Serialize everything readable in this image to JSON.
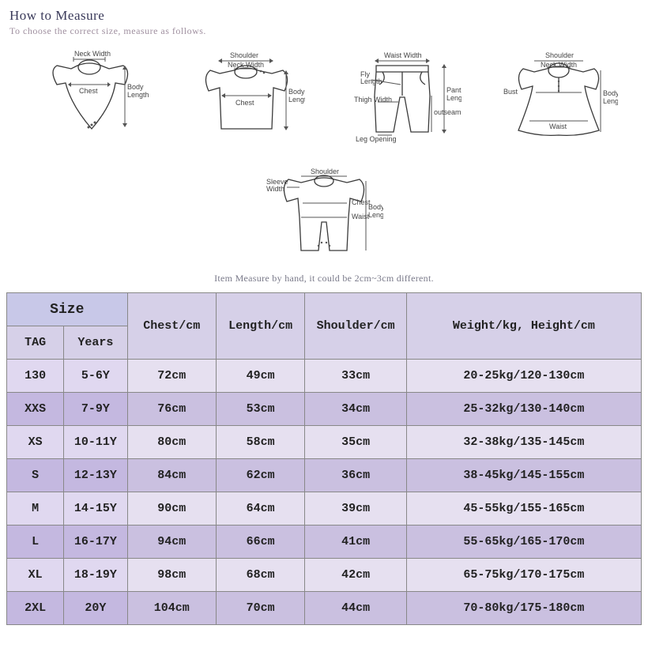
{
  "header": {
    "title": "How to Measure",
    "subtitle": "To choose the correct size, measure as follows."
  },
  "diagrams": {
    "labels": {
      "neck_width": "Neck Width",
      "chest": "Chest",
      "body_length": "Body\nLength",
      "shoulder": "Shoulder",
      "bust": "Bust",
      "waist": "Waist",
      "waist_width": "Waist Width",
      "fly_length": "Fly\nLength",
      "thigh_width": "Thigh Width",
      "leg_opening": "Leg Opening",
      "pant_length": "Pant\nLength",
      "outseam": "outseam",
      "sleeve_width": "Sleeve\nWidth"
    },
    "stroke_color": "#3a3a3a",
    "label_color": "#444444"
  },
  "note": "Item Measure by hand, it could be 2cm~3cm different.",
  "table": {
    "header_bg_size": "#c8c8e8",
    "header_bg_col": "#d6d0e8",
    "row_odd_bg": "#e6e0f0",
    "row_even_bg": "#cac0e0",
    "border_color": "#888888",
    "font_family": "Courier New",
    "size_header": "Size",
    "sub_headers": [
      "TAG",
      "Years"
    ],
    "columns": [
      "Chest/cm",
      "Length/cm",
      "Shoulder/cm",
      "Weight/kg, Height/cm"
    ],
    "rows": [
      {
        "tag": "130",
        "years": "5-6Y",
        "chest": "72cm",
        "length": "49cm",
        "shoulder": "33cm",
        "weight": "20-25kg/120-130cm"
      },
      {
        "tag": "XXS",
        "years": "7-9Y",
        "chest": "76cm",
        "length": "53cm",
        "shoulder": "34cm",
        "weight": "25-32kg/130-140cm"
      },
      {
        "tag": "XS",
        "years": "10-11Y",
        "chest": "80cm",
        "length": "58cm",
        "shoulder": "35cm",
        "weight": "32-38kg/135-145cm"
      },
      {
        "tag": "S",
        "years": "12-13Y",
        "chest": "84cm",
        "length": "62cm",
        "shoulder": "36cm",
        "weight": "38-45kg/145-155cm"
      },
      {
        "tag": "M",
        "years": "14-15Y",
        "chest": "90cm",
        "length": "64cm",
        "shoulder": "39cm",
        "weight": "45-55kg/155-165cm"
      },
      {
        "tag": "L",
        "years": "16-17Y",
        "chest": "94cm",
        "length": "66cm",
        "shoulder": "41cm",
        "weight": "55-65kg/165-170cm"
      },
      {
        "tag": "XL",
        "years": "18-19Y",
        "chest": "98cm",
        "length": "68cm",
        "shoulder": "42cm",
        "weight": "65-75kg/170-175cm"
      },
      {
        "tag": "2XL",
        "years": "20Y",
        "chest": "104cm",
        "length": "70cm",
        "shoulder": "44cm",
        "weight": "70-80kg/175-180cm"
      }
    ]
  }
}
